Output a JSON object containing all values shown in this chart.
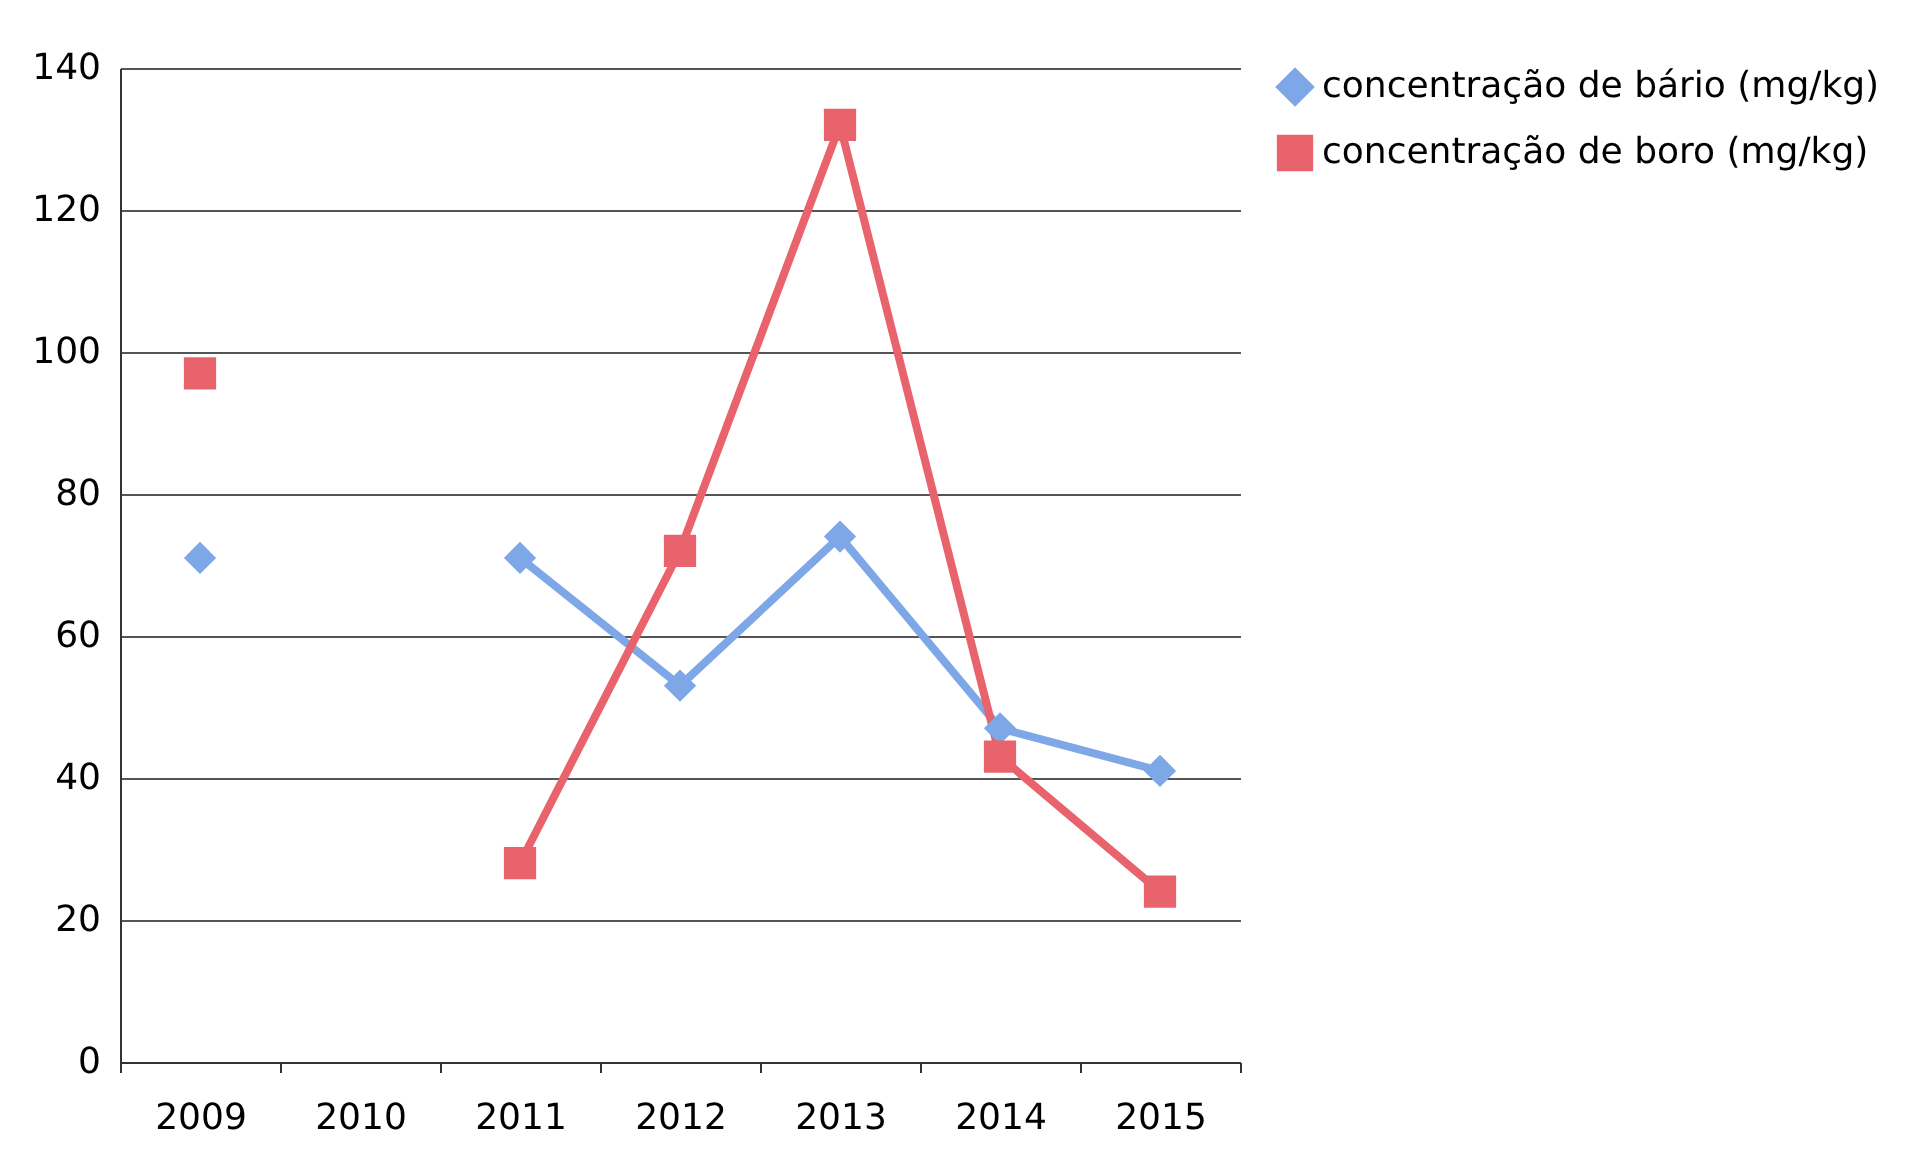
{
  "chart_data": {
    "type": "line",
    "categories": [
      "2009",
      "2010",
      "2011",
      "2012",
      "2013",
      "2014",
      "2015"
    ],
    "series": [
      {
        "name": "concentração de bário (mg/kg)",
        "color": "#7da7e6",
        "marker": "diamond",
        "values": [
          71,
          null,
          71,
          53,
          74,
          47,
          41
        ]
      },
      {
        "name": "concentração de boro (mg/kg)",
        "color": "#e8636c",
        "marker": "square",
        "values": [
          97,
          null,
          28,
          72,
          132,
          43,
          24
        ]
      }
    ],
    "ylim": [
      0,
      140
    ],
    "yticks": [
      0,
      20,
      40,
      60,
      80,
      100,
      120,
      140
    ],
    "grid": "y",
    "legend": "right"
  }
}
